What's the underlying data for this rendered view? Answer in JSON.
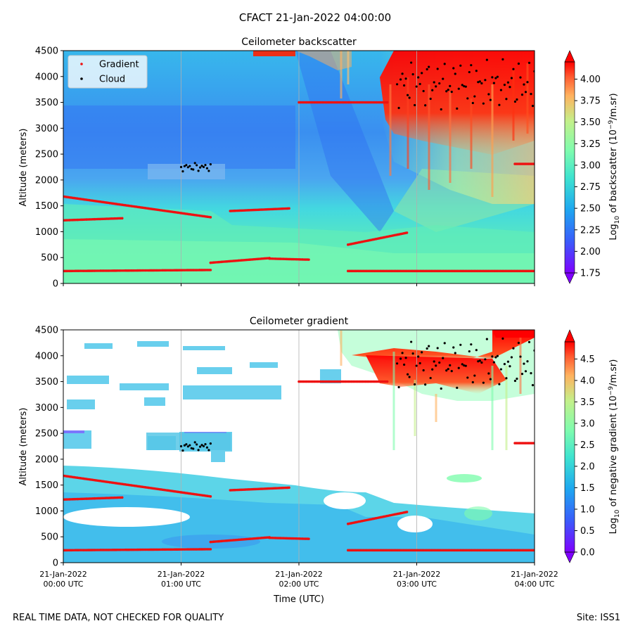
{
  "figure": {
    "suptitle": "CFACT 21-Jan-2022 04:00:00",
    "footer_left": "REAL TIME DATA, NOT CHECKED FOR QUALITY",
    "footer_right": "Site: ISS1",
    "xlabel": "Time (UTC)"
  },
  "chart_data": [
    {
      "type": "heatmap",
      "title": "Ceilometer backscatter",
      "ylabel": "Altitude (meters)",
      "xlabel": "",
      "ylim": [
        0,
        4500
      ],
      "yticks": [
        0,
        500,
        1000,
        1500,
        2000,
        2500,
        3000,
        3500,
        4000,
        4500
      ],
      "xlim": [
        "00:00",
        "04:00"
      ],
      "xticks": [
        "00:00",
        "01:00",
        "02:00",
        "03:00",
        "04:00"
      ],
      "colorbar_label": "Log10 of backscatter (10^-9/m.sr)",
      "colorbar_ticks": [
        "4.00",
        "3.75",
        "3.50",
        "3.25",
        "3.00",
        "2.75",
        "2.50",
        "2.25",
        "2.00",
        "1.75"
      ],
      "colorbar_range": [
        1.75,
        4.2
      ],
      "legend": {
        "placement": "top-left",
        "entries": [
          {
            "name": "Gradient",
            "color": "#ee1111"
          },
          {
            "name": "Cloud",
            "color": "#000000"
          }
        ]
      },
      "gradient_segments": [
        {
          "x": [
            "00:00",
            "01:15"
          ],
          "y": [
            240,
            260
          ]
        },
        {
          "x": [
            "00:00",
            "00:30"
          ],
          "y": [
            1220,
            1260
          ]
        },
        {
          "x": [
            "00:00",
            "01:15"
          ],
          "y": [
            1680,
            1280
          ]
        },
        {
          "x": [
            "01:15",
            "01:45"
          ],
          "y": [
            400,
            490
          ]
        },
        {
          "x": [
            "01:45",
            "02:05"
          ],
          "y": [
            480,
            460
          ]
        },
        {
          "x": [
            "01:25",
            "01:55"
          ],
          "y": [
            1400,
            1450
          ]
        },
        {
          "x": [
            "02:00",
            "02:45"
          ],
          "y": [
            3500,
            3500
          ]
        },
        {
          "x": [
            "02:25",
            "02:55"
          ],
          "y": [
            750,
            980
          ]
        },
        {
          "x": [
            "02:25",
            "04:00"
          ],
          "y": [
            240,
            240
          ]
        },
        {
          "x": [
            "03:50",
            "04:00"
          ],
          "y": [
            2310,
            2310
          ]
        }
      ],
      "cloud_clusters": [
        {
          "x": [
            "01:00",
            "01:15"
          ],
          "y": [
            2150,
            2350
          ]
        },
        {
          "x": [
            "02:50",
            "04:00"
          ],
          "y": [
            3300,
            4400
          ]
        }
      ]
    },
    {
      "type": "heatmap",
      "title": "Ceilometer gradient",
      "ylabel": "Altitude (meters)",
      "xlabel": "Time (UTC)",
      "ylim": [
        0,
        4500
      ],
      "yticks": [
        0,
        500,
        1000,
        1500,
        2000,
        2500,
        3000,
        3500,
        4000,
        4500
      ],
      "xlim": [
        "00:00",
        "04:00"
      ],
      "xticks": [
        "00:00",
        "01:00",
        "02:00",
        "03:00",
        "04:00"
      ],
      "xtick_labels": [
        [
          "21-Jan-2022",
          "00:00 UTC"
        ],
        [
          "21-Jan-2022",
          "01:00 UTC"
        ],
        [
          "21-Jan-2022",
          "02:00 UTC"
        ],
        [
          "21-Jan-2022",
          "03:00 UTC"
        ],
        [
          "21-Jan-2022",
          "04:00 UTC"
        ]
      ],
      "colorbar_label": "Log10 of negative gradient (10^-9/m.sr)",
      "colorbar_ticks": [
        "4.5",
        "4.0",
        "3.5",
        "3.0",
        "2.5",
        "2.0",
        "1.5",
        "1.0",
        "0.5",
        "0.0"
      ],
      "colorbar_range": [
        0.0,
        4.9
      ]
    }
  ]
}
